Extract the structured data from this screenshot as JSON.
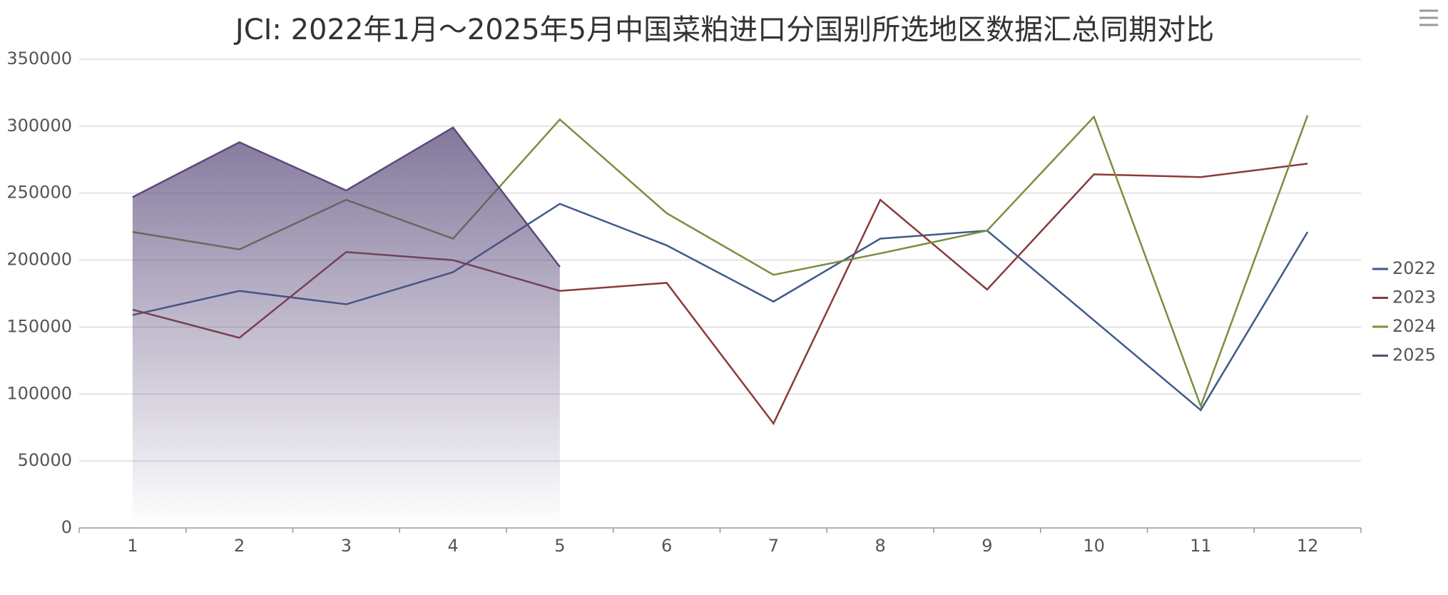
{
  "chart_data": {
    "type": "line",
    "title": "JCI: 2022年1月～2025年5月中国菜粕进口分国别所选地区数据汇总同期对比",
    "categories": [
      "1",
      "2",
      "3",
      "4",
      "5",
      "6",
      "7",
      "8",
      "9",
      "10",
      "11",
      "12"
    ],
    "series": [
      {
        "name": "2022",
        "color": "#3f5a8a",
        "values": [
          159000,
          177000,
          167000,
          191000,
          242000,
          211000,
          169000,
          216000,
          222000,
          155000,
          88000,
          221000
        ]
      },
      {
        "name": "2023",
        "color": "#8b3a3a",
        "values": [
          163000,
          142000,
          206000,
          200000,
          177000,
          183000,
          78000,
          245000,
          178000,
          264000,
          262000,
          272000
        ]
      },
      {
        "name": "2024",
        "color": "#7a8f3e",
        "values": [
          221000,
          208000,
          245000,
          216000,
          305000,
          235000,
          189000,
          205000,
          222000,
          307000,
          91000,
          308000
        ]
      },
      {
        "name": "2025",
        "color": "#5a4a7a",
        "area": true,
        "values": [
          247000,
          288000,
          252000,
          299000,
          195000,
          null,
          null,
          null,
          null,
          null,
          null,
          null
        ]
      }
    ],
    "ylim": [
      0,
      350000
    ],
    "yticks": [
      0,
      50000,
      100000,
      150000,
      200000,
      250000,
      300000,
      350000
    ],
    "grid": true,
    "legend": "right"
  }
}
